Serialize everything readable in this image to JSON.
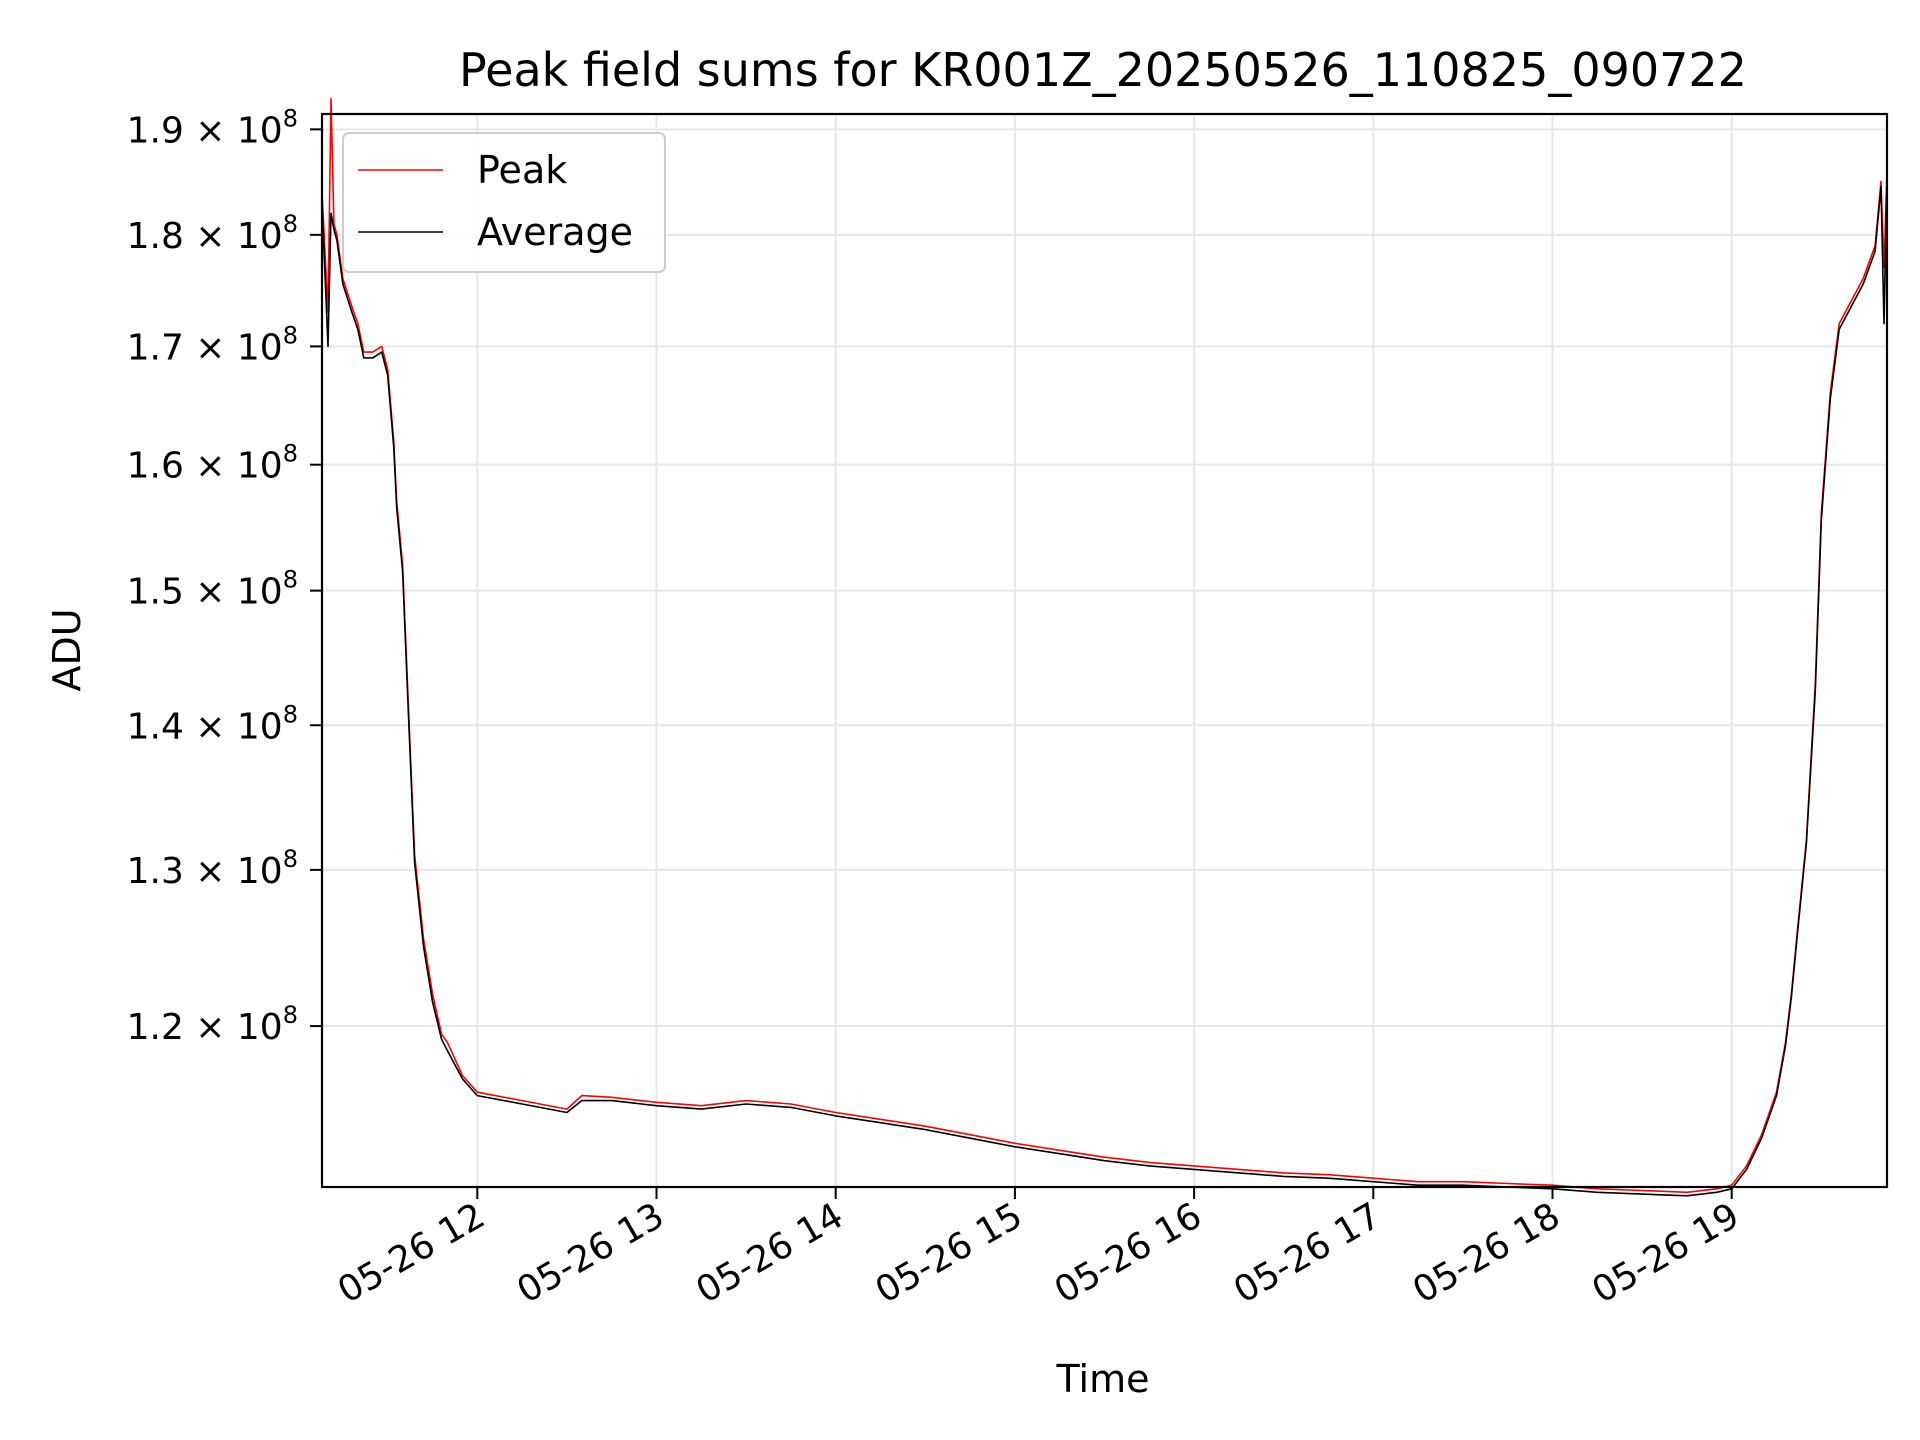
{
  "chart_data": {
    "type": "line",
    "title": "Peak field sums for KR001Z_20250526_110825_090722",
    "xlabel": "Time",
    "ylabel": "ADU",
    "yscale": "log",
    "grid": true,
    "legend_position": "top-left",
    "xlim": [
      "2025-05-26 11:08",
      "2025-05-26 19:52"
    ],
    "ylim": [
      110500000,
      191500000
    ],
    "x_ticks": [
      "05-26 12",
      "05-26 13",
      "05-26 14",
      "05-26 15",
      "05-26 16",
      "05-26 17",
      "05-26 18",
      "05-26 19"
    ],
    "x_tick_times": [
      "2025-05-26 12:00",
      "2025-05-26 13:00",
      "2025-05-26 14:00",
      "2025-05-26 15:00",
      "2025-05-26 16:00",
      "2025-05-26 17:00",
      "2025-05-26 18:00",
      "2025-05-26 19:00"
    ],
    "y_ticks": [
      {
        "value": 120000000,
        "mantissa": "1.2",
        "exponent": "8"
      },
      {
        "value": 130000000,
        "mantissa": "1.3",
        "exponent": "8"
      },
      {
        "value": 140000000,
        "mantissa": "1.4",
        "exponent": "8"
      },
      {
        "value": 150000000,
        "mantissa": "1.5",
        "exponent": "8"
      },
      {
        "value": 160000000,
        "mantissa": "1.6",
        "exponent": "8"
      },
      {
        "value": 170000000,
        "mantissa": "1.7",
        "exponent": "8"
      },
      {
        "value": 180000000,
        "mantissa": "1.8",
        "exponent": "8"
      },
      {
        "value": 190000000,
        "mantissa": "1.9",
        "exponent": "8"
      }
    ],
    "tick_multiplier": "× 10",
    "series": [
      {
        "name": "Peak",
        "color": "#ff0000",
        "x": [
          "2025-05-26 11:08",
          "2025-05-26 11:10",
          "2025-05-26 11:11",
          "2025-05-26 11:12",
          "2025-05-26 11:13",
          "2025-05-26 11:15",
          "2025-05-26 11:18",
          "2025-05-26 11:20",
          "2025-05-26 11:22",
          "2025-05-26 11:25",
          "2025-05-26 11:28",
          "2025-05-26 11:30",
          "2025-05-26 11:32",
          "2025-05-26 11:33",
          "2025-05-26 11:35",
          "2025-05-26 11:37",
          "2025-05-26 11:39",
          "2025-05-26 11:42",
          "2025-05-26 11:45",
          "2025-05-26 11:48",
          "2025-05-26 11:50",
          "2025-05-26 11:55",
          "2025-05-26 12:00",
          "2025-05-26 12:15",
          "2025-05-26 12:30",
          "2025-05-26 12:35",
          "2025-05-26 12:45",
          "2025-05-26 13:00",
          "2025-05-26 13:15",
          "2025-05-26 13:30",
          "2025-05-26 13:45",
          "2025-05-26 14:00",
          "2025-05-26 14:15",
          "2025-05-26 14:30",
          "2025-05-26 14:45",
          "2025-05-26 15:00",
          "2025-05-26 15:15",
          "2025-05-26 15:30",
          "2025-05-26 15:45",
          "2025-05-26 16:00",
          "2025-05-26 16:15",
          "2025-05-26 16:30",
          "2025-05-26 16:45",
          "2025-05-26 17:00",
          "2025-05-26 17:15",
          "2025-05-26 17:30",
          "2025-05-26 17:45",
          "2025-05-26 18:00",
          "2025-05-26 18:15",
          "2025-05-26 18:30",
          "2025-05-26 18:45",
          "2025-05-26 18:55",
          "2025-05-26 19:00",
          "2025-05-26 19:05",
          "2025-05-26 19:10",
          "2025-05-26 19:15",
          "2025-05-26 19:18",
          "2025-05-26 19:20",
          "2025-05-26 19:22",
          "2025-05-26 19:25",
          "2025-05-26 19:28",
          "2025-05-26 19:30",
          "2025-05-26 19:33",
          "2025-05-26 19:36",
          "2025-05-26 19:40",
          "2025-05-26 19:44",
          "2025-05-26 19:48",
          "2025-05-26 19:50",
          "2025-05-26 19:51",
          "2025-05-26 19:52"
        ],
        "values": [
          184000000,
          173000000,
          193000000,
          181000000,
          180000000,
          176000000,
          173500000,
          172000000,
          169500000,
          169500000,
          170000000,
          168000000,
          162000000,
          157000000,
          152000000,
          141000000,
          131000000,
          125500000,
          122000000,
          119500000,
          119000000,
          117000000,
          116000000,
          115500000,
          115000000,
          115800000,
          115700000,
          115400000,
          115200000,
          115500000,
          115300000,
          114800000,
          114400000,
          114000000,
          113500000,
          113000000,
          112600000,
          112200000,
          111900000,
          111700000,
          111500000,
          111300000,
          111200000,
          111000000,
          110800000,
          110800000,
          110700000,
          110600000,
          110400000,
          110300000,
          110200000,
          110400000,
          110600000,
          111700000,
          113500000,
          116000000,
          119000000,
          122000000,
          126000000,
          132000000,
          143000000,
          156000000,
          166000000,
          172000000,
          174000000,
          176000000,
          179000000,
          185000000,
          177000000,
          186000000
        ]
      },
      {
        "name": "Average",
        "color": "#000000",
        "x": [
          "2025-05-26 11:08",
          "2025-05-26 11:10",
          "2025-05-26 11:11",
          "2025-05-26 11:12",
          "2025-05-26 11:13",
          "2025-05-26 11:15",
          "2025-05-26 11:18",
          "2025-05-26 11:20",
          "2025-05-26 11:22",
          "2025-05-26 11:25",
          "2025-05-26 11:28",
          "2025-05-26 11:30",
          "2025-05-26 11:32",
          "2025-05-26 11:33",
          "2025-05-26 11:35",
          "2025-05-26 11:37",
          "2025-05-26 11:39",
          "2025-05-26 11:42",
          "2025-05-26 11:45",
          "2025-05-26 11:48",
          "2025-05-26 11:50",
          "2025-05-26 11:55",
          "2025-05-26 12:00",
          "2025-05-26 12:15",
          "2025-05-26 12:30",
          "2025-05-26 12:35",
          "2025-05-26 12:45",
          "2025-05-26 13:00",
          "2025-05-26 13:15",
          "2025-05-26 13:30",
          "2025-05-26 13:45",
          "2025-05-26 14:00",
          "2025-05-26 14:15",
          "2025-05-26 14:30",
          "2025-05-26 14:45",
          "2025-05-26 15:00",
          "2025-05-26 15:15",
          "2025-05-26 15:30",
          "2025-05-26 15:45",
          "2025-05-26 16:00",
          "2025-05-26 16:15",
          "2025-05-26 16:30",
          "2025-05-26 16:45",
          "2025-05-26 17:00",
          "2025-05-26 17:15",
          "2025-05-26 17:30",
          "2025-05-26 17:45",
          "2025-05-26 18:00",
          "2025-05-26 18:15",
          "2025-05-26 18:30",
          "2025-05-26 18:45",
          "2025-05-26 18:55",
          "2025-05-26 19:00",
          "2025-05-26 19:05",
          "2025-05-26 19:10",
          "2025-05-26 19:15",
          "2025-05-26 19:18",
          "2025-05-26 19:20",
          "2025-05-26 19:22",
          "2025-05-26 19:25",
          "2025-05-26 19:28",
          "2025-05-26 19:30",
          "2025-05-26 19:33",
          "2025-05-26 19:36",
          "2025-05-26 19:40",
          "2025-05-26 19:44",
          "2025-05-26 19:48",
          "2025-05-26 19:50",
          "2025-05-26 19:51",
          "2025-05-26 19:52"
        ],
        "values": [
          183000000,
          170000000,
          182000000,
          180500000,
          179500000,
          175500000,
          173000000,
          171500000,
          169000000,
          169000000,
          169500000,
          167500000,
          161500000,
          156500000,
          151500000,
          140500000,
          130500000,
          125000000,
          121500000,
          119200000,
          118500000,
          116800000,
          115800000,
          115300000,
          114800000,
          115500000,
          115500000,
          115200000,
          115000000,
          115300000,
          115100000,
          114600000,
          114200000,
          113800000,
          113300000,
          112800000,
          112400000,
          112000000,
          111700000,
          111500000,
          111300000,
          111100000,
          111000000,
          110800000,
          110600000,
          110600000,
          110500000,
          110400000,
          110200000,
          110100000,
          110000000,
          110200000,
          110400000,
          111500000,
          113300000,
          115800000,
          118800000,
          121800000,
          125800000,
          131800000,
          142500000,
          155500000,
          165500000,
          171500000,
          173500000,
          175500000,
          178500000,
          184500000,
          172000000,
          185500000
        ]
      }
    ]
  }
}
